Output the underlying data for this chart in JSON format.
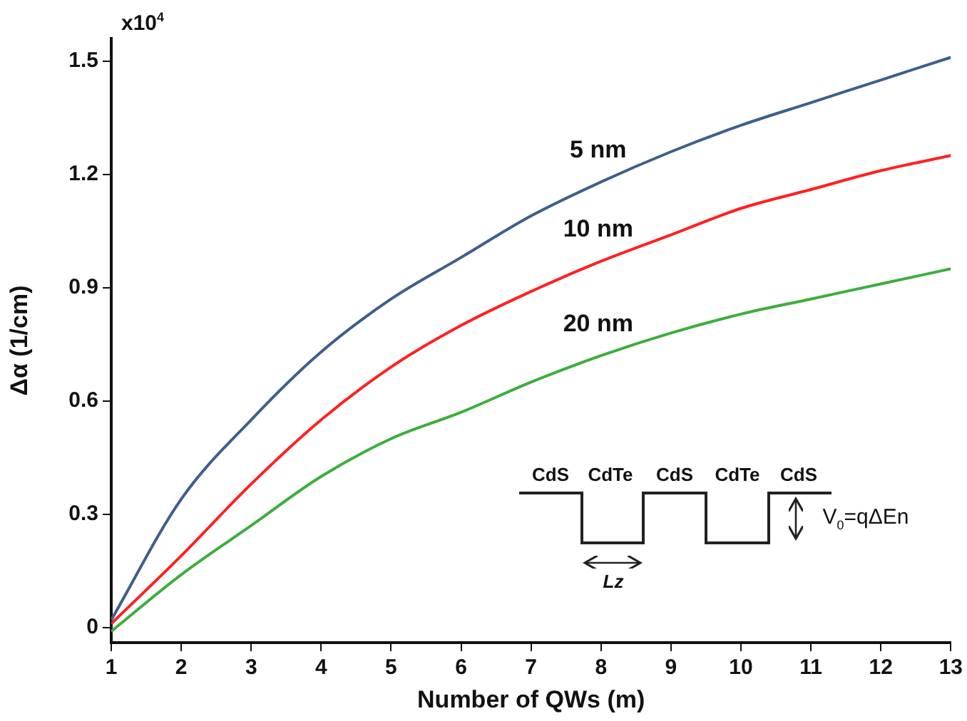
{
  "chart_data": {
    "type": "line",
    "xlabel": "Number of QWs (m)",
    "ylabel": "Δα (1/cm)",
    "x": [
      1,
      2,
      3,
      4,
      5,
      6,
      7,
      8,
      9,
      10,
      11,
      12,
      13
    ],
    "series": [
      {
        "name": "5 nm",
        "color": "#3e5f8a",
        "values": [
          0.02,
          0.34,
          0.55,
          0.73,
          0.87,
          0.98,
          1.09,
          1.18,
          1.26,
          1.33,
          1.39,
          1.45,
          1.51
        ]
      },
      {
        "name": "10 nm",
        "color": "#ff2020",
        "values": [
          0.01,
          0.19,
          0.38,
          0.55,
          0.69,
          0.8,
          0.89,
          0.97,
          1.04,
          1.11,
          1.16,
          1.21,
          1.25
        ]
      },
      {
        "name": "20 nm",
        "color": "#3cae3c",
        "values": [
          -0.01,
          0.14,
          0.27,
          0.4,
          0.5,
          0.57,
          0.65,
          0.72,
          0.78,
          0.83,
          0.87,
          0.91,
          0.95
        ]
      }
    ],
    "xlim": [
      1,
      13
    ],
    "xticks": [
      1,
      2,
      3,
      4,
      5,
      6,
      7,
      8,
      9,
      10,
      11,
      12,
      13
    ],
    "ylim": [
      -0.04,
      1.56
    ],
    "yticks": [
      0,
      0.3,
      0.6,
      0.9,
      1.2,
      1.5
    ],
    "grid": false,
    "legend": false,
    "marker": "none",
    "line_style": "solid",
    "annotations": [
      "x10$^{4}$",
      "CdS",
      "CdTe",
      "CdS",
      "CdTe",
      "CdS",
      "Lz",
      "V$_{0}$=qΔEn"
    ]
  }
}
